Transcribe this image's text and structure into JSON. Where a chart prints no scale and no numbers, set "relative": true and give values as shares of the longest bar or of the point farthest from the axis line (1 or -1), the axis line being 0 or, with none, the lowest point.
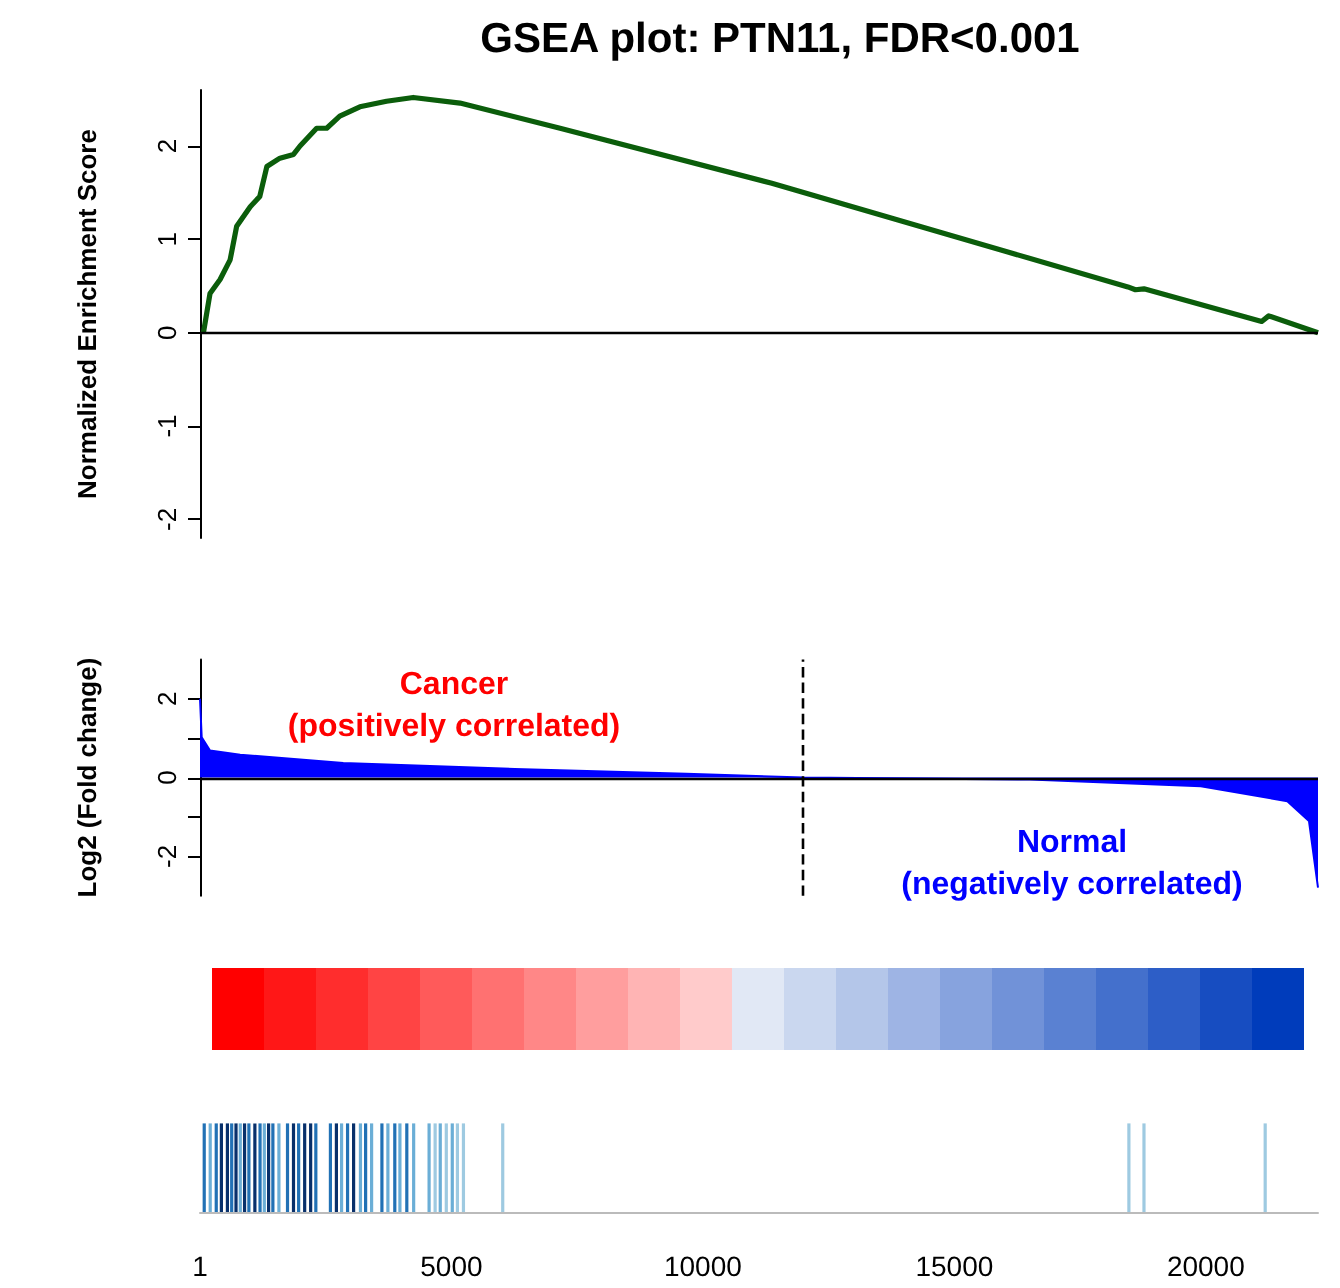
{
  "chart_data": [
    {
      "type": "line",
      "title": "GSEA plot: PTN11, FDR<0.001",
      "ylabel": "Normalized Enrichment Score",
      "xlim": [
        1,
        22230
      ],
      "ylim": [
        -2.2,
        2.6
      ],
      "yticks": [
        -2,
        -1,
        0,
        1,
        2
      ],
      "tick_labels": "y",
      "ref_lines": [
        {
          "axis": "y",
          "value": 0,
          "color": "#000000"
        }
      ],
      "series": [
        {
          "color": "#0b5d0b",
          "x": [
            70,
            200,
            400,
            600,
            730,
            1000,
            1190,
            1330,
            1590,
            1860,
            1990,
            2320,
            2520,
            2780,
            3180,
            3710,
            4240,
            5170,
            7160,
            11370,
            18450,
            18600,
            18770,
            21110,
            21250,
            22230
          ],
          "values": [
            0,
            0.42,
            0.57,
            0.78,
            1.14,
            1.35,
            1.46,
            1.78,
            1.87,
            1.91,
            2.0,
            2.19,
            2.19,
            2.32,
            2.42,
            2.48,
            2.52,
            2.46,
            2.19,
            1.6,
            0.49,
            0.46,
            0.47,
            0.12,
            0.18,
            0
          ]
        }
      ]
    },
    {
      "type": "area",
      "ylabel": "Log2 (Fold change)",
      "xlim": [
        1,
        22230
      ],
      "ylim": [
        -3,
        3
      ],
      "yticks": [
        -2,
        {
          "value": -1,
          "label": null
        },
        0,
        {
          "value": 1,
          "label": null
        },
        2
      ],
      "tick_labels": "y",
      "annotations": [
        "Cancer\n(positively correlated)",
        "Normal\n(negatively correlated)"
      ],
      "ref_lines": [
        {
          "axis": "y",
          "value": 0,
          "color": "#000000"
        },
        {
          "axis": "x",
          "value": 12000,
          "color": "#000000",
          "line_style": "dashed"
        }
      ],
      "series": [
        {
          "color": "#0000ff",
          "x": [
            1,
            35,
            200,
            800,
            2850,
            6260,
            9670,
            12000,
            16500,
            19900,
            21620,
            22050,
            22230
          ],
          "values": [
            2.0,
            1.02,
            0.69,
            0.58,
            0.37,
            0.22,
            0.1,
            0,
            -0.05,
            -0.22,
            -0.6,
            -1.1,
            -2.79
          ]
        }
      ]
    },
    {
      "type": "bar",
      "relative": true,
      "xlim": [
        1,
        22230
      ],
      "xticks": [
        1,
        5000,
        10000,
        15000,
        20000
      ],
      "tick_labels": "x",
      "x": [
        85,
        204,
        324,
        426,
        546,
        631,
        717,
        802,
        887,
        973,
        1092,
        1195,
        1280,
        1365,
        1450,
        1570,
        1741,
        1860,
        1962,
        2082,
        2201,
        2304,
        2594,
        2713,
        2816,
        2935,
        3055,
        3191,
        3294,
        3413,
        3618,
        3737,
        3874,
        3976,
        4113,
        4249,
        4556,
        4676,
        4778,
        4898,
        5017,
        5119,
        5239,
        6020,
        18470,
        18770,
        21180
      ],
      "values": [
        1,
        1,
        1,
        1,
        1,
        1,
        1,
        1,
        1,
        1,
        1,
        1,
        1,
        1,
        1,
        1,
        1,
        1,
        1,
        1,
        1,
        1,
        1,
        1,
        1,
        1,
        1,
        1,
        1,
        1,
        1,
        1,
        1,
        1,
        1,
        1,
        1,
        1,
        1,
        1,
        1,
        1,
        1,
        1,
        1,
        1,
        1
      ],
      "colors": [
        "#2171b5",
        "#6baed6",
        "#2171b5",
        "#08306b",
        "#08306b",
        "#2171b5",
        "#08306b",
        "#6baed6",
        "#08306b",
        "#2171b5",
        "#08306b",
        "#2171b5",
        "#6baed6",
        "#08306b",
        "#2171b5",
        "#6baed6",
        "#2171b5",
        "#08306b",
        "#2171b5",
        "#08306b",
        "#08306b",
        "#2171b5",
        "#2171b5",
        "#08306b",
        "#6baed6",
        "#2171b5",
        "#08306b",
        "#6baed6",
        "#2171b5",
        "#6baed6",
        "#2171b5",
        "#6baed6",
        "#2171b5",
        "#6baed6",
        "#2171b5",
        "#6baed6",
        "#6baed6",
        "#9ecae1",
        "#6baed6",
        "#9ecae1",
        "#6baed6",
        "#9ecae1",
        "#9ecae1",
        "#9ecae1",
        "#9ecae1",
        "#9ecae1",
        "#9ecae1"
      ]
    }
  ]
}
